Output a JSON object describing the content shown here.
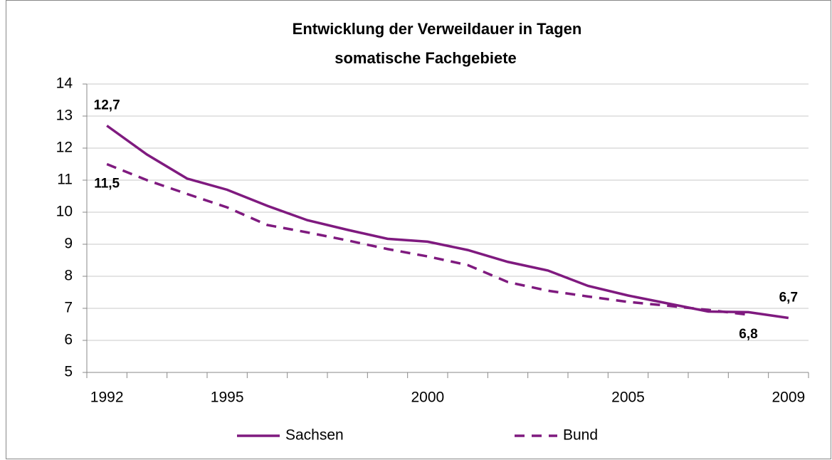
{
  "chart_data": {
    "type": "line",
    "title": "Entwicklung der Verweildauer in Tagen",
    "subtitle": "somatische Fachgebiete",
    "categories": [
      "1992",
      null,
      null,
      "1995",
      null,
      null,
      null,
      null,
      "2000",
      null,
      null,
      null,
      null,
      "2005",
      null,
      null,
      null,
      "2009"
    ],
    "series": [
      {
        "name": "Sachsen",
        "color": "#7f1a7f",
        "dash": false,
        "values": [
          12.7,
          11.8,
          11.05,
          10.7,
          10.2,
          9.75,
          9.45,
          9.17,
          9.08,
          8.82,
          8.45,
          8.18,
          7.7,
          7.4,
          7.15,
          6.9,
          6.88,
          6.7
        ],
        "value_labels": [
          "12,7",
          null,
          null,
          null,
          null,
          null,
          null,
          null,
          null,
          null,
          null,
          null,
          null,
          null,
          null,
          null,
          null,
          "6,7"
        ]
      },
      {
        "name": "Bund",
        "color": "#7f1a7f",
        "dash": true,
        "values": [
          11.5,
          11.0,
          10.57,
          10.15,
          9.6,
          9.37,
          9.12,
          8.85,
          8.62,
          8.35,
          7.82,
          7.55,
          7.37,
          7.2,
          7.08,
          6.95,
          6.8,
          null
        ],
        "value_labels": [
          "11,5",
          null,
          null,
          null,
          null,
          null,
          null,
          null,
          null,
          null,
          null,
          null,
          null,
          null,
          null,
          null,
          "6,8",
          null
        ]
      }
    ],
    "ylim": [
      5,
      14
    ],
    "yticks": [
      5,
      6,
      7,
      8,
      9,
      10,
      11,
      12,
      13,
      14
    ],
    "grid": true,
    "legend": "bottom"
  }
}
